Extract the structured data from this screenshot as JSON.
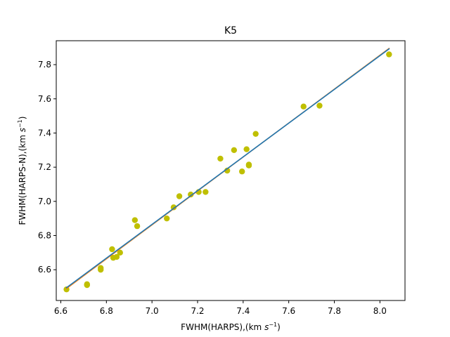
{
  "chart_data": {
    "type": "scatter",
    "title": "K5",
    "xlabel": "FWHM(HARPS),(km ",
    "xlabel_unit": "s",
    "xlabel_exp": "−1",
    "xlabel_close": ")",
    "ylabel": "FWHM(HARPS-N),(km ",
    "ylabel_unit": "s",
    "ylabel_exp": "−1",
    "ylabel_close": ")",
    "xlim": [
      6.58,
      8.11
    ],
    "ylim": [
      6.42,
      7.94
    ],
    "xticks": [
      6.6,
      6.8,
      7.0,
      7.2,
      7.4,
      7.6,
      7.8,
      8.0
    ],
    "yticks": [
      6.6,
      6.8,
      7.0,
      7.2,
      7.4,
      7.6,
      7.8
    ],
    "xtick_labels": [
      "6.6",
      "6.8",
      "7.0",
      "7.2",
      "7.4",
      "7.6",
      "7.8",
      "8.0"
    ],
    "ytick_labels": [
      "6.6",
      "6.8",
      "7.0",
      "7.2",
      "7.4",
      "7.6",
      "7.8"
    ],
    "grid": false,
    "series": [
      {
        "kind": "points",
        "color": "#bfbf00",
        "points": [
          [
            6.625,
            6.485
          ],
          [
            6.715,
            6.515
          ],
          [
            6.715,
            6.51
          ],
          [
            6.775,
            6.6
          ],
          [
            6.775,
            6.61
          ],
          [
            6.825,
            6.72
          ],
          [
            6.83,
            6.67
          ],
          [
            6.845,
            6.675
          ],
          [
            6.86,
            6.7
          ],
          [
            6.925,
            6.89
          ],
          [
            6.935,
            6.855
          ],
          [
            7.065,
            6.9
          ],
          [
            7.095,
            6.965
          ],
          [
            7.12,
            7.03
          ],
          [
            7.17,
            7.04
          ],
          [
            7.205,
            7.055
          ],
          [
            7.235,
            7.055
          ],
          [
            7.3,
            7.25
          ],
          [
            7.33,
            7.18
          ],
          [
            7.36,
            7.3
          ],
          [
            7.395,
            7.175
          ],
          [
            7.415,
            7.305
          ],
          [
            7.425,
            7.215
          ],
          [
            7.425,
            7.21
          ],
          [
            7.455,
            7.395
          ],
          [
            7.665,
            7.555
          ],
          [
            7.735,
            7.56
          ],
          [
            8.04,
            7.86
          ]
        ]
      },
      {
        "kind": "fit",
        "color": "#ff7f0e",
        "x": [
          6.625,
          8.04
        ],
        "y": [
          6.49,
          7.895
        ]
      },
      {
        "kind": "fit",
        "color": "#1f77b4",
        "x": [
          6.625,
          8.04
        ],
        "y": [
          6.495,
          7.892
        ]
      }
    ]
  }
}
